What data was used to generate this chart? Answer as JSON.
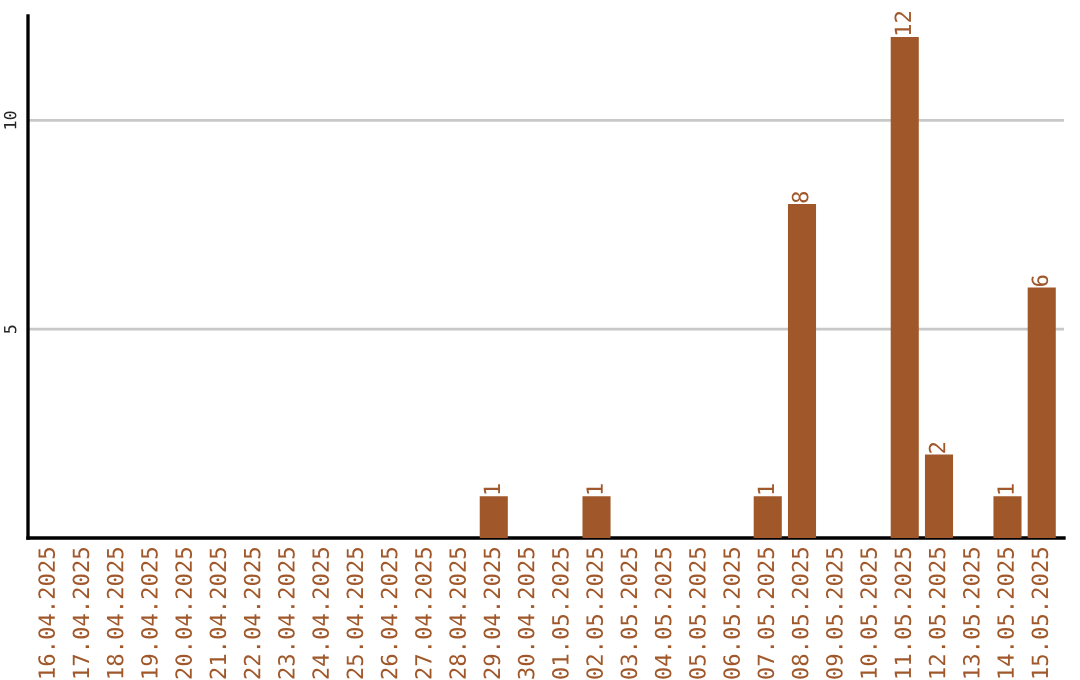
{
  "chart_data": {
    "type": "bar",
    "categories": [
      "16.04.2025",
      "17.04.2025",
      "18.04.2025",
      "19.04.2025",
      "20.04.2025",
      "21.04.2025",
      "22.04.2025",
      "23.04.2025",
      "24.04.2025",
      "25.04.2025",
      "26.04.2025",
      "27.04.2025",
      "28.04.2025",
      "29.04.2025",
      "30.04.2025",
      "01.05.2025",
      "02.05.2025",
      "03.05.2025",
      "04.05.2025",
      "05.05.2025",
      "06.05.2025",
      "07.05.2025",
      "08.05.2025",
      "09.05.2025",
      "10.05.2025",
      "11.05.2025",
      "12.05.2025",
      "13.05.2025",
      "14.05.2025",
      "15.05.2025"
    ],
    "values": [
      0,
      0,
      0,
      0,
      0,
      0,
      0,
      0,
      0,
      0,
      0,
      0,
      0,
      1,
      0,
      0,
      1,
      0,
      0,
      0,
      0,
      1,
      8,
      0,
      0,
      12,
      2,
      0,
      1,
      6
    ],
    "value_labels": [
      null,
      null,
      null,
      null,
      null,
      null,
      null,
      null,
      null,
      null,
      null,
      null,
      null,
      "1",
      null,
      null,
      "1",
      null,
      null,
      null,
      null,
      "1",
      "8",
      null,
      null,
      "12",
      "2",
      null,
      "1",
      "6"
    ],
    "color": "#a0572a",
    "ylim": [
      0,
      12.5
    ],
    "yticks": [
      5,
      10
    ],
    "grid": "y",
    "legend": false
  }
}
